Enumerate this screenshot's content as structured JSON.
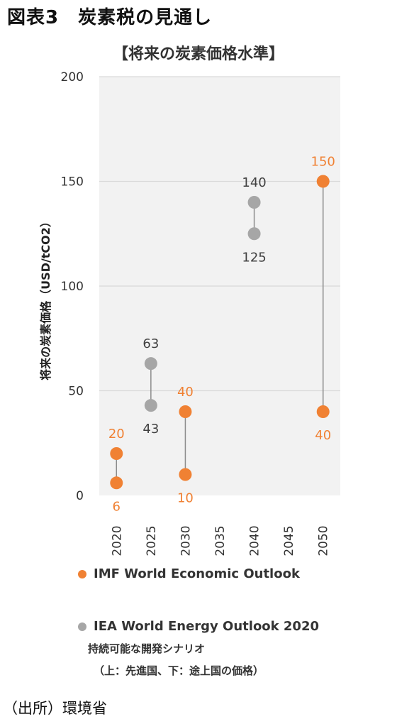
{
  "figure_title": "図表3　炭素税の見通し",
  "source": "（出所）環境省",
  "colors": {
    "imf": "#F08133",
    "iea": "#A6A6A6",
    "grid": "#D9D9D9",
    "plot_bg": "#F2F2F2"
  },
  "chart_data": {
    "type": "scatter",
    "title": "【将来の炭素価格水準】",
    "ylabel": "将来の炭素価格（USD/tCO2）",
    "xlabel": "",
    "ylim": [
      0,
      200
    ],
    "yticks": [
      0,
      50,
      100,
      150,
      200
    ],
    "categories": [
      "2020",
      "2025",
      "2030",
      "2035",
      "2040",
      "2045",
      "2050"
    ],
    "grid": true,
    "legend_position": "bottom",
    "series": [
      {
        "name": "IMF World Economic Outlook",
        "points": [
          {
            "x": "2020",
            "high": 20,
            "low": 6
          },
          {
            "x": "2030",
            "high": 40,
            "low": 10
          },
          {
            "x": "2050",
            "high": 150,
            "low": 40
          }
        ]
      },
      {
        "name": "IEA World Energy Outlook 2020",
        "note": "持続可能な開発シナリオ",
        "note2": "（上：先進国、下：途上国の価格）",
        "points": [
          {
            "x": "2025",
            "high": 63,
            "low": 43
          },
          {
            "x": "2040",
            "high": 140,
            "low": 125
          }
        ]
      }
    ]
  }
}
